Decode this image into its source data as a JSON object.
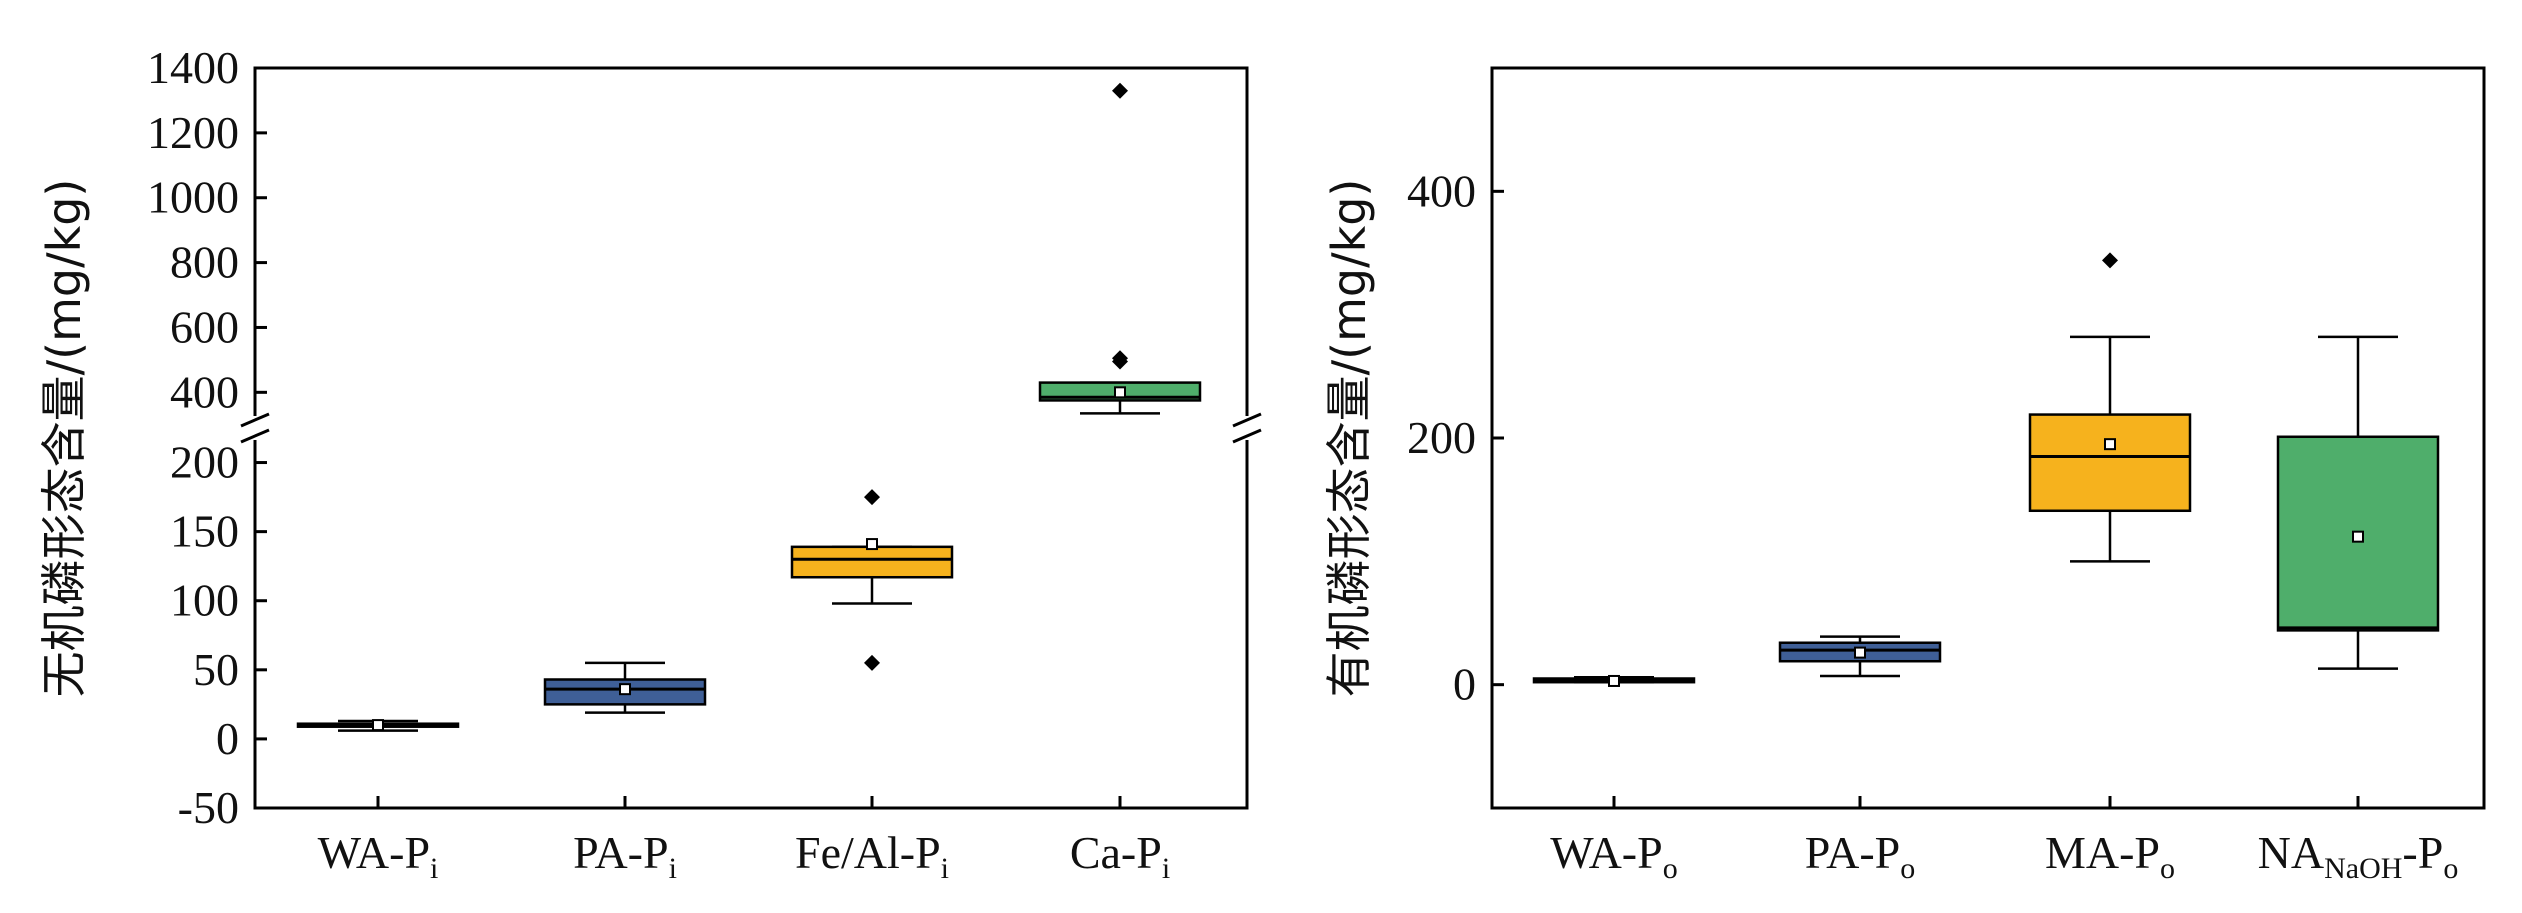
{
  "chart_data": [
    {
      "type": "box",
      "ylabel": "无机磷形态含量/(mg/kg)",
      "y_axis": {
        "broken": true,
        "lower_range": [
          -50,
          225
        ],
        "upper_range": [
          290,
          1400
        ],
        "lower_ticks": [
          "-50",
          "0",
          "50",
          "100",
          "150",
          "200"
        ],
        "upper_ticks": [
          "400",
          "600",
          "800",
          "1000",
          "1200",
          "1400"
        ]
      },
      "categories": [
        {
          "base": "WA-P",
          "sub": "i"
        },
        {
          "base": "PA-P",
          "sub": "i"
        },
        {
          "base": "Fe/Al-P",
          "sub": "i"
        },
        {
          "base": "Ca-P",
          "sub": "i"
        }
      ],
      "boxes": [
        {
          "color": "#6b2222",
          "whisker_low": 6,
          "q1": 9,
          "median": 10,
          "q3": 11,
          "whisker_high": 13,
          "mean": 10,
          "outliers": []
        },
        {
          "color": "#3f5f97",
          "whisker_low": 19,
          "q1": 25,
          "median": 36,
          "q3": 43,
          "whisker_high": 55,
          "mean": 36,
          "outliers": []
        },
        {
          "color": "#f6b21d",
          "whisker_low": 98,
          "q1": 117,
          "median": 130,
          "q3": 139,
          "whisker_high": 139,
          "mean": 141,
          "outliers": [
            55,
            175
          ]
        },
        {
          "color": "#4fae6b",
          "whisker_low": 335,
          "q1": 375,
          "median": 385,
          "q3": 430,
          "whisker_high": 430,
          "mean": 400,
          "outliers": [
            495,
            505,
            1330
          ]
        }
      ]
    },
    {
      "type": "box",
      "ylabel": "有机磷形态含量/(mg/kg)",
      "y_axis": {
        "broken": false,
        "range": [
          -100,
          500
        ],
        "ticks": [
          "0",
          "200",
          "400"
        ]
      },
      "categories": [
        {
          "base": "WA-P",
          "sub": "o"
        },
        {
          "base": "PA-P",
          "sub": "o"
        },
        {
          "base": "MA-P",
          "sub": "o"
        },
        {
          "base": "NA",
          "sub": "NaOH",
          "suffix": "-P",
          "sub2": "o"
        }
      ],
      "boxes": [
        {
          "color": "#6b2222",
          "whisker_low": 2,
          "q1": 2,
          "median": 3,
          "q3": 5,
          "whisker_high": 6,
          "mean": 3,
          "outliers": []
        },
        {
          "color": "#3f5f97",
          "whisker_low": 7,
          "q1": 19,
          "median": 28,
          "q3": 34,
          "whisker_high": 39,
          "mean": 26,
          "outliers": []
        },
        {
          "color": "#f6b21d",
          "whisker_low": 100,
          "q1": 141,
          "median": 185,
          "q3": 219,
          "whisker_high": 282,
          "mean": 195,
          "outliers": [
            344
          ]
        },
        {
          "color": "#4fae6b",
          "whisker_low": 13,
          "q1": 44,
          "median": 46,
          "q3": 201,
          "whisker_high": 282,
          "mean": 120,
          "outliers": []
        }
      ]
    }
  ]
}
